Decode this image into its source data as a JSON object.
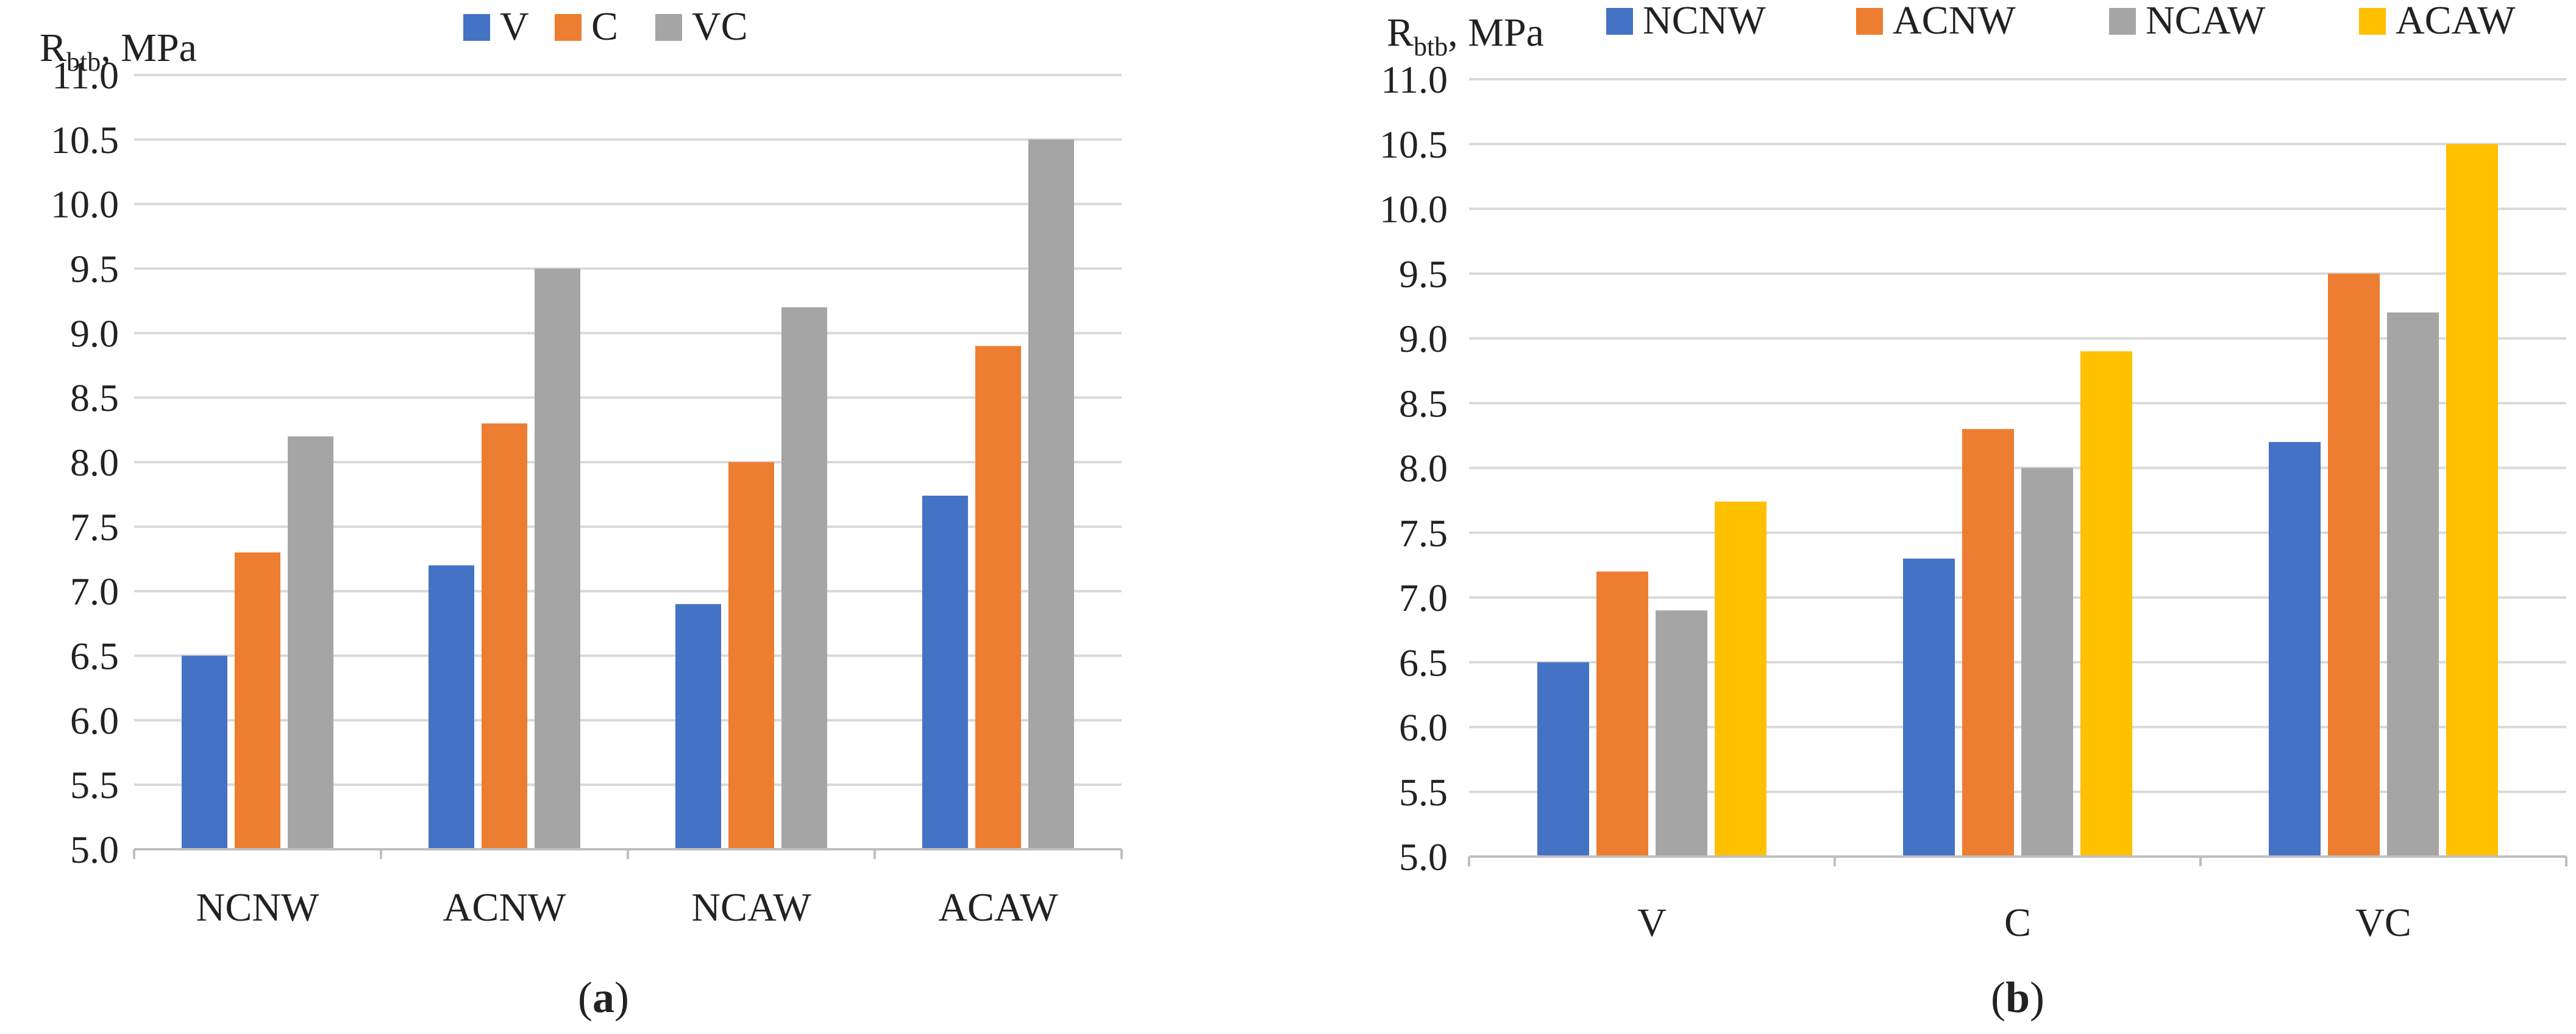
{
  "figure": {
    "panels": [
      {
        "id": "a",
        "caption_prefix": "(",
        "caption_label": "a",
        "caption_suffix": ")",
        "ylabel_main": "R",
        "ylabel_sub": "btb",
        "ylabel_tail": ", MPa"
      },
      {
        "id": "b",
        "caption_prefix": "(",
        "caption_label": "b",
        "caption_suffix": ")",
        "ylabel_main": "R",
        "ylabel_sub": "btb",
        "ylabel_tail": ", MPa"
      }
    ]
  },
  "chart_data": [
    {
      "type": "bar",
      "title": "",
      "xlabel": "",
      "ylabel": "R_btb, MPa",
      "ylim": [
        5.0,
        11.0
      ],
      "ytick_step": 0.5,
      "grid": true,
      "legend": "top",
      "categories": [
        "NCNW",
        "ACNW",
        "NCAW",
        "ACAW"
      ],
      "series": [
        {
          "name": "V",
          "color": "#4472C4",
          "values": [
            6.5,
            7.2,
            6.9,
            7.74
          ]
        },
        {
          "name": "C",
          "color": "#ED7D31",
          "values": [
            7.3,
            8.3,
            8.0,
            8.9
          ]
        },
        {
          "name": "VC",
          "color": "#A5A5A5",
          "values": [
            8.2,
            9.5,
            9.2,
            10.5
          ]
        }
      ]
    },
    {
      "type": "bar",
      "title": "",
      "xlabel": "",
      "ylabel": "R_btb, MPa",
      "ylim": [
        5.0,
        11.0
      ],
      "ytick_step": 0.5,
      "grid": true,
      "legend": "top",
      "categories": [
        "V",
        "C",
        "VC"
      ],
      "series": [
        {
          "name": "NCNW",
          "color": "#4472C4",
          "values": [
            6.5,
            7.3,
            8.2
          ]
        },
        {
          "name": "ACNW",
          "color": "#ED7D31",
          "values": [
            7.2,
            8.3,
            9.5
          ]
        },
        {
          "name": "NCAW",
          "color": "#A5A5A5",
          "values": [
            6.9,
            8.0,
            9.2
          ]
        },
        {
          "name": "ACAW",
          "color": "#FFC000",
          "values": [
            7.74,
            8.9,
            10.5
          ]
        }
      ]
    }
  ]
}
